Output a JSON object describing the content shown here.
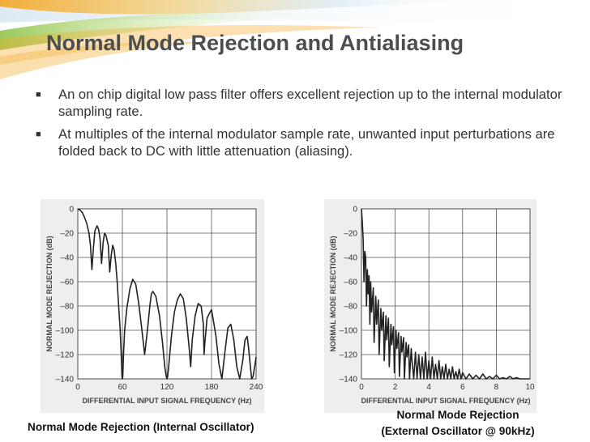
{
  "slide": {
    "title": "Normal Mode Rejection and Antialiasing",
    "bullets": [
      "An on chip digital low pass filter offers excellent rejection up to the internal modulator sampling rate.",
      "At multiples of the internal modulator sample rate, unwanted input perturbations are folded back to DC with little attenuation (aliasing)."
    ],
    "colors": {
      "title": "#4a4e52",
      "accent_orange": "#f5a623",
      "accent_green": "#8fc44a",
      "swoosh_blue": "#cfe3ef"
    }
  },
  "captions": {
    "left": "Normal Mode Rejection (Internal Oscillator)",
    "right_line1": "Normal Mode Rejection",
    "right_line2": "(External Oscillator @ 90kHz)"
  },
  "chart_data": [
    {
      "type": "line",
      "xlabel": "DIFFERENTIAL INPUT SIGNAL FREQUENCY (Hz)",
      "ylabel": "NORMAL MODE REJECTION (dB)",
      "xlim": [
        0,
        240
      ],
      "ylim": [
        -140,
        0
      ],
      "x_ticks": [
        "0",
        "60",
        "120",
        "180",
        "240"
      ],
      "y_ticks": [
        "0",
        "–20",
        "–40",
        "–60",
        "–80",
        "–100",
        "–120",
        "–140"
      ],
      "grid": true,
      "series": [
        {
          "x": [
            0,
            3,
            6,
            9,
            12,
            15,
            17,
            19,
            21,
            23,
            26,
            28,
            30,
            32,
            34,
            36,
            38,
            41,
            43,
            45,
            47,
            49,
            51,
            53,
            55,
            57,
            58.5,
            59.5,
            60,
            60.5,
            61.5,
            63,
            66,
            70,
            74,
            78,
            82,
            86,
            90,
            94,
            97,
            99,
            101,
            105,
            110,
            114,
            117,
            119,
            120,
            121,
            123,
            126,
            130,
            134,
            138,
            142,
            146,
            150,
            152,
            154,
            158,
            162,
            166,
            169,
            170,
            171,
            174,
            178,
            180,
            182,
            186,
            190,
            194,
            198,
            202,
            206,
            210,
            214,
            218,
            222,
            225,
            228,
            230,
            232,
            234,
            236,
            238,
            240
          ],
          "y": [
            0,
            -1,
            -3,
            -7,
            -12,
            -20,
            -30,
            -50,
            -32,
            -18,
            -14,
            -17,
            -25,
            -45,
            -28,
            -20,
            -22,
            -30,
            -52,
            -38,
            -30,
            -34,
            -45,
            -60,
            -80,
            -100,
            -120,
            -138,
            -140,
            -138,
            -120,
            -100,
            -82,
            -66,
            -58,
            -62,
            -78,
            -98,
            -120,
            -98,
            -80,
            -70,
            -68,
            -72,
            -88,
            -110,
            -130,
            -138,
            -140,
            -138,
            -125,
            -105,
            -85,
            -75,
            -70,
            -74,
            -90,
            -115,
            -130,
            -108,
            -88,
            -78,
            -80,
            -95,
            -120,
            -110,
            -90,
            -85,
            -83,
            -90,
            -105,
            -128,
            -140,
            -118,
            -98,
            -95,
            -108,
            -130,
            -140,
            -125,
            -108,
            -105,
            -115,
            -128,
            -140,
            -138,
            -130,
            -122
          ]
        }
      ]
    },
    {
      "type": "line",
      "xlabel": "DIFFERENTIAL INPUT SIGNAL FREQUENCY (Hz)",
      "ylabel": "NORMAL MODE REJECTION (dB)",
      "xlim": [
        0,
        10
      ],
      "ylim": [
        -140,
        0
      ],
      "x_ticks": [
        "0",
        "2",
        "4",
        "6",
        "8",
        "10"
      ],
      "y_ticks": [
        "0",
        "–20",
        "–40",
        "–60",
        "–80",
        "–100",
        "–120",
        "–140"
      ],
      "grid": true,
      "series": [
        {
          "x": [
            0,
            0.05,
            0.1,
            0.15,
            0.2,
            0.25,
            0.3,
            0.35,
            0.4,
            0.45,
            0.5,
            0.55,
            0.6,
            0.7,
            0.75,
            0.85,
            0.9,
            1.0,
            1.05,
            1.15,
            1.2,
            1.3,
            1.35,
            1.45,
            1.5,
            1.6,
            1.65,
            1.75,
            1.8,
            1.9,
            1.95,
            2.05,
            2.1,
            2.2,
            2.25,
            2.35,
            2.4,
            2.5,
            2.55,
            2.65,
            2.7,
            2.8,
            2.85,
            2.95,
            3.0,
            3.1,
            3.2,
            3.3,
            3.4,
            3.5,
            3.6,
            3.7,
            3.8,
            3.9,
            4.0,
            4.1,
            4.2,
            4.3,
            4.4,
            4.5,
            4.6,
            4.7,
            4.8,
            4.9,
            5.0,
            5.1,
            5.2,
            5.3,
            5.4,
            5.5,
            5.6,
            5.7,
            5.8,
            5.9,
            6.0,
            6.2,
            6.4,
            6.6,
            6.8,
            7.0,
            7.2,
            7.4,
            7.6,
            7.8,
            8.0,
            8.2,
            8.4,
            8.6,
            8.8,
            9.0,
            9.2,
            9.4,
            9.6,
            9.8,
            10.0
          ],
          "y": [
            0,
            -10,
            -25,
            -60,
            -35,
            -40,
            -80,
            -50,
            -70,
            -55,
            -95,
            -60,
            -85,
            -65,
            -110,
            -72,
            -95,
            -75,
            -120,
            -82,
            -100,
            -85,
            -125,
            -88,
            -108,
            -90,
            -130,
            -95,
            -112,
            -97,
            -135,
            -100,
            -115,
            -102,
            -138,
            -105,
            -118,
            -106,
            -140,
            -110,
            -122,
            -112,
            -140,
            -115,
            -125,
            -140,
            -118,
            -140,
            -120,
            -140,
            -122,
            -140,
            -118,
            -140,
            -125,
            -140,
            -122,
            -140,
            -128,
            -140,
            -125,
            -140,
            -130,
            -140,
            -128,
            -140,
            -132,
            -140,
            -130,
            -140,
            -134,
            -140,
            -132,
            -140,
            -135,
            -140,
            -136,
            -140,
            -137,
            -140,
            -136,
            -140,
            -138,
            -140,
            -137,
            -140,
            -139,
            -140,
            -138,
            -140,
            -139,
            -140,
            -140,
            -140,
            -140
          ]
        }
      ]
    }
  ]
}
